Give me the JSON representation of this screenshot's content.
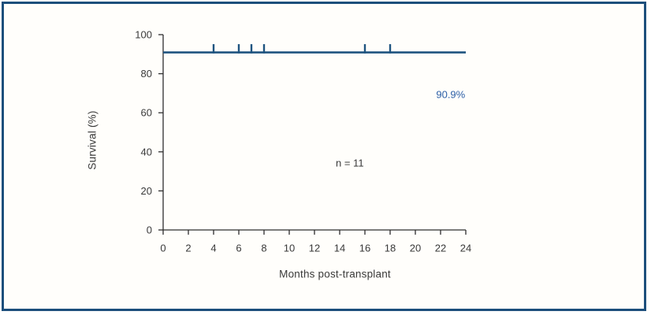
{
  "figure": {
    "background_color": "#fffefb",
    "border_color": "#1d4f7c",
    "axis_color": "#2e2e2e",
    "text_color": "#3a3a3a"
  },
  "chart_data": {
    "type": "line",
    "subtype": "kaplan-meier-step-curve",
    "title": "",
    "xlabel": "Months post-transplant",
    "ylabel": "Survival (%)",
    "xlim": [
      0,
      24
    ],
    "ylim": [
      0,
      100
    ],
    "xticks": [
      0,
      2,
      4,
      6,
      8,
      10,
      12,
      14,
      16,
      18,
      20,
      22,
      24
    ],
    "yticks": [
      0,
      20,
      40,
      60,
      80,
      100
    ],
    "grid": false,
    "legend": false,
    "series": [
      {
        "name": "overall-survival",
        "color": "#1f5480",
        "x": [
          0,
          24
        ],
        "y": [
          90.9,
          90.9
        ],
        "censor_tick_months": [
          4,
          6,
          7,
          8,
          16,
          18
        ],
        "censor_tick_y": 90.9
      }
    ],
    "annotations": [
      {
        "id": "survival-rate",
        "text": "90.9%",
        "x": 22.8,
        "y": 69.4,
        "color": "#2c5fa7"
      },
      {
        "id": "sample-size",
        "text": "n = 11",
        "x": 14.8,
        "y": 34.3,
        "color": "#3a3a3a"
      }
    ]
  }
}
